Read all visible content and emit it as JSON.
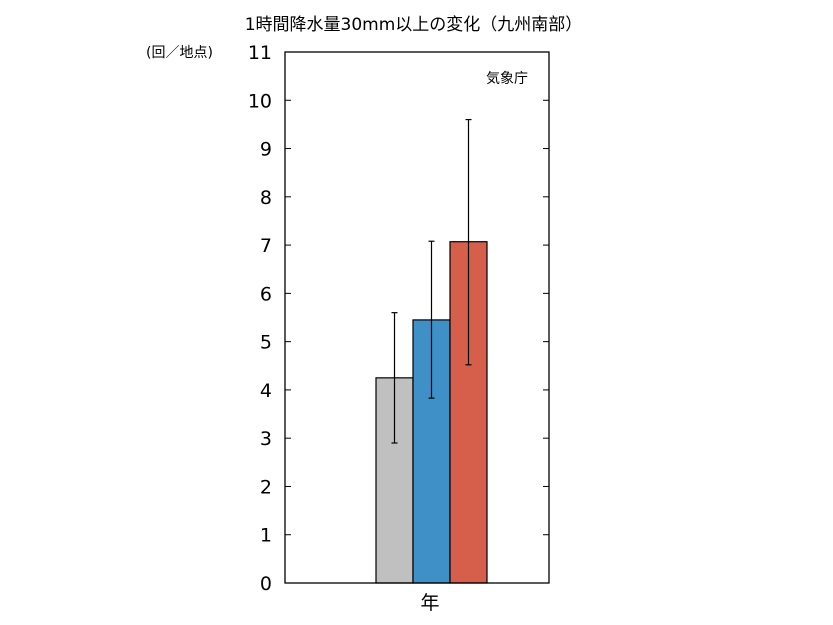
{
  "chart_data": {
    "type": "bar",
    "title": "1時間降水量30mm以上の変化（九州南部）",
    "ylabel": "(回／地点)",
    "categories": [
      "年"
    ],
    "ylim": [
      0,
      11
    ],
    "yticks": [
      0,
      1,
      2,
      3,
      4,
      5,
      6,
      7,
      8,
      9,
      10,
      11
    ],
    "grid": false,
    "annotation": "気象庁",
    "series": [
      {
        "values": [
          4.25
        ],
        "error_low": [
          2.9
        ],
        "error_high": [
          5.6
        ],
        "color": "#c0c0c0"
      },
      {
        "values": [
          5.45
        ],
        "error_low": [
          3.83
        ],
        "error_high": [
          7.08
        ],
        "color": "#3e90c6"
      },
      {
        "values": [
          7.07
        ],
        "error_low": [
          4.52
        ],
        "error_high": [
          9.6
        ],
        "color": "#d65f4c"
      }
    ]
  }
}
